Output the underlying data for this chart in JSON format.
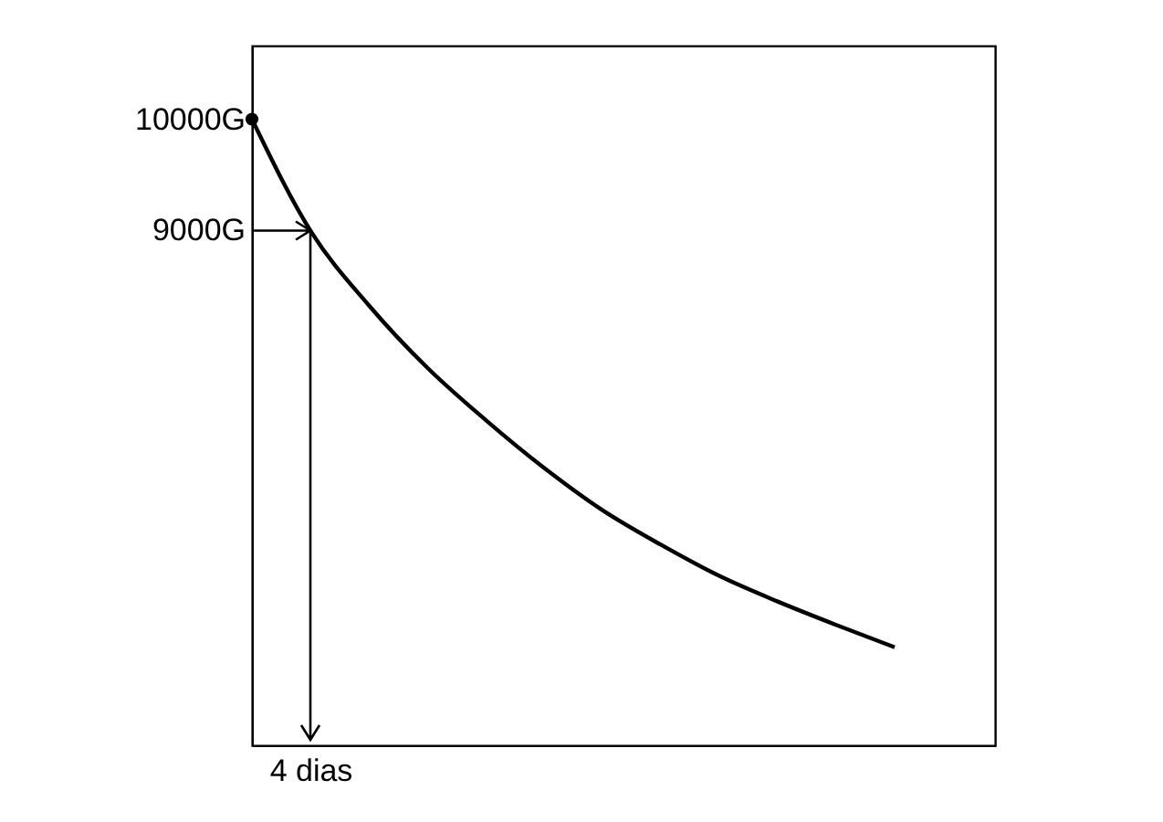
{
  "chart_data": {
    "type": "line",
    "categories": [
      null,
      "4 dias",
      null,
      null,
      null,
      null,
      null,
      null,
      null,
      null,
      null,
      null
    ],
    "series": [
      {
        "color": "#000000",
        "values": [
          10000,
          9000,
          8330,
          7770,
          7300,
          6870,
          6490,
          6180,
          5900,
          5670,
          5460,
          5260
        ]
      },
      {
        "type": "scatter",
        "marker": "circle",
        "color": "#000000",
        "values": [
          10000,
          null,
          null,
          null,
          null,
          null,
          null,
          null,
          null,
          null,
          null,
          null
        ]
      }
    ],
    "ylim": [
      4380,
      10660
    ],
    "yticks": [
      {
        "value": 10000,
        "label": "10000G"
      },
      {
        "value": 9000,
        "label": "9000G"
      }
    ],
    "grid": false,
    "line_style": "solid"
  }
}
